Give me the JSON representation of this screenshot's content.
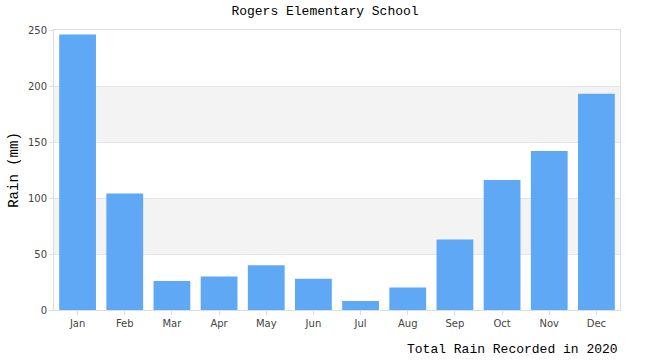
{
  "chart_data": {
    "type": "bar",
    "title": "Rogers Elementary School",
    "x_label": "Total Rain Recorded in 2020",
    "y_label": "Rain (mm)",
    "categories": [
      "Jan",
      "Feb",
      "Mar",
      "Apr",
      "May",
      "Jun",
      "Jul",
      "Aug",
      "Sep",
      "Oct",
      "Nov",
      "Dec"
    ],
    "values": [
      246,
      104,
      26,
      30,
      40,
      28,
      8,
      20,
      63,
      116,
      142,
      193
    ],
    "color": "#5fa8f5",
    "ylim": [
      0,
      250
    ],
    "yticks": [
      0,
      50,
      100,
      150,
      200,
      250
    ],
    "grid": true
  }
}
